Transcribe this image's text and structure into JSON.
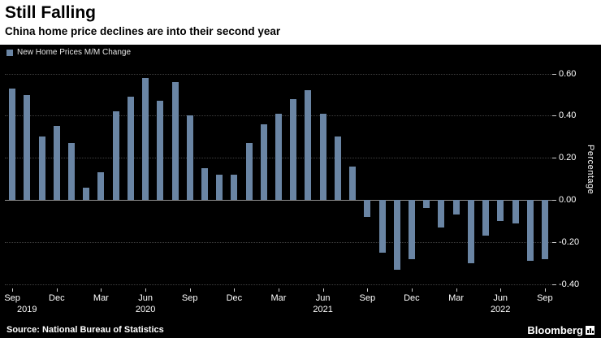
{
  "header": {
    "title": "Still Falling",
    "subtitle": "China home price declines are into their second year"
  },
  "legend": {
    "label": "New Home Prices M/M Change"
  },
  "chart_data": {
    "type": "bar",
    "title": "Still Falling",
    "subtitle": "China home price declines are into their second year",
    "series_name": "New Home Prices M/M Change",
    "x": [
      "Sep 2019",
      "Oct 2019",
      "Nov 2019",
      "Dec 2019",
      "Jan 2020",
      "Feb 2020",
      "Mar 2020",
      "Apr 2020",
      "May 2020",
      "Jun 2020",
      "Jul 2020",
      "Aug 2020",
      "Sep 2020",
      "Oct 2020",
      "Nov 2020",
      "Dec 2020",
      "Jan 2021",
      "Feb 2021",
      "Mar 2021",
      "Apr 2021",
      "May 2021",
      "Jun 2021",
      "Jul 2021",
      "Aug 2021",
      "Sep 2021",
      "Oct 2021",
      "Nov 2021",
      "Dec 2021",
      "Jan 2022",
      "Feb 2022",
      "Mar 2022",
      "Apr 2022",
      "May 2022",
      "Jun 2022",
      "Jul 2022",
      "Aug 2022",
      "Sep 2022"
    ],
    "values": [
      0.53,
      0.5,
      0.3,
      0.35,
      0.27,
      0.06,
      0.13,
      0.42,
      0.49,
      0.58,
      0.47,
      0.56,
      0.4,
      0.15,
      0.12,
      0.12,
      0.27,
      0.36,
      0.41,
      0.48,
      0.52,
      0.41,
      0.3,
      0.16,
      -0.08,
      -0.25,
      -0.33,
      -0.28,
      -0.04,
      -0.13,
      -0.07,
      -0.3,
      -0.17,
      -0.1,
      -0.11,
      -0.29,
      -0.28
    ],
    "ylabel": "Percentage",
    "xlabel": "",
    "ylim": [
      -0.42,
      0.66
    ],
    "yticks": [
      0.6,
      0.4,
      0.2,
      0.0,
      -0.2,
      -0.4
    ],
    "ytick_labels": [
      "0.60",
      "0.40",
      "0.20",
      "0.00",
      "-0.20",
      "-0.40"
    ],
    "xtick_indices": [
      0,
      3,
      6,
      9,
      12,
      15,
      18,
      21,
      24,
      27,
      30,
      33,
      36
    ],
    "xtick_labels": [
      "Sep",
      "Dec",
      "Mar",
      "Jun",
      "Sep",
      "Dec",
      "Mar",
      "Jun",
      "Sep",
      "Dec",
      "Mar",
      "Jun",
      "Sep"
    ],
    "year_labels": [
      {
        "label": "2019",
        "index": 1
      },
      {
        "label": "2020",
        "index": 9
      },
      {
        "label": "2021",
        "index": 21
      },
      {
        "label": "2022",
        "index": 33
      }
    ],
    "grid": true,
    "legend_position": "top-left"
  },
  "colors": {
    "bar": "#6a85a4",
    "background": "#000000",
    "header_background": "#ffffff",
    "axis_text": "#ffffff",
    "gridline": "#3f3f3f"
  },
  "footer": {
    "source": "Source: National Bureau of Statistics",
    "brand": "Bloomberg"
  }
}
